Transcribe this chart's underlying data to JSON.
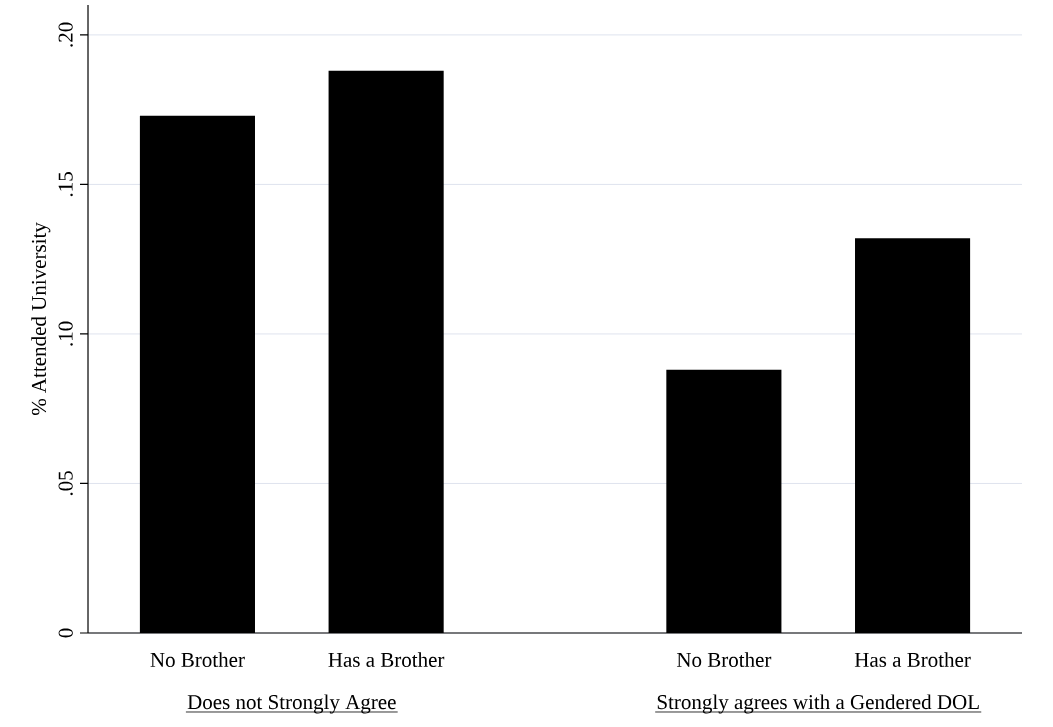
{
  "chart_data": {
    "type": "bar",
    "ylabel": "% Attended University",
    "categories": [
      "No Brother",
      "Has a Brother",
      "No Brother",
      "Has a Brother"
    ],
    "values": [
      0.173,
      0.188,
      0.088,
      0.132
    ],
    "color": "#000000",
    "ylim": [
      0,
      0.21
    ],
    "yticks": [
      {
        "value": 0,
        "label": "0"
      },
      {
        "value": 0.05,
        "label": ".05"
      },
      {
        "value": 0.1,
        "label": ".10"
      },
      {
        "value": 0.15,
        "label": ".15"
      },
      {
        "value": 0.2,
        "label": ".20"
      }
    ],
    "grid": "y",
    "annotations": [
      "Does not Strongly Agree",
      "Strongly agrees with a Gendered DOL"
    ]
  }
}
